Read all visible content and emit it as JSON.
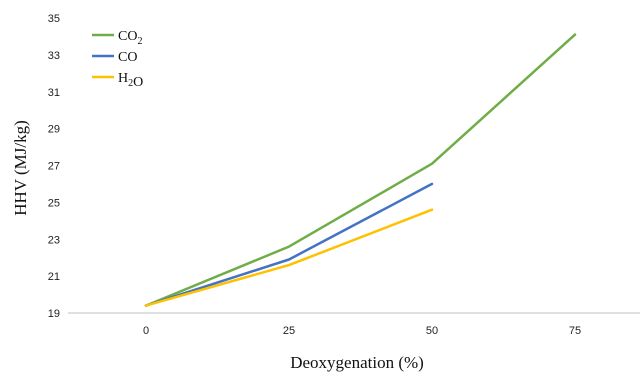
{
  "chart_data": {
    "type": "line",
    "title": "",
    "xlabel": "Deoxygenation (%)",
    "ylabel": "HHV (MJ/kg)",
    "categories": [
      "0",
      "25",
      "50",
      "75"
    ],
    "x": [
      0,
      25,
      50,
      75
    ],
    "ylim": [
      19,
      35
    ],
    "yticks": [
      19,
      21,
      23,
      25,
      27,
      29,
      31,
      33,
      35
    ],
    "grid": false,
    "legend_position": "top-left",
    "series": [
      {
        "name": "CO₂",
        "color": "#70ad47",
        "x": [
          0,
          25,
          50,
          75
        ],
        "values": [
          19.4,
          22.6,
          27.1,
          34.1
        ]
      },
      {
        "name": "CO",
        "color": "#4472c4",
        "x": [
          0,
          25,
          50
        ],
        "values": [
          19.4,
          21.9,
          26.0
        ]
      },
      {
        "name": "H₂O",
        "color": "#ffc000",
        "x": [
          0,
          25,
          50
        ],
        "values": [
          19.4,
          21.6,
          24.6
        ]
      }
    ]
  }
}
